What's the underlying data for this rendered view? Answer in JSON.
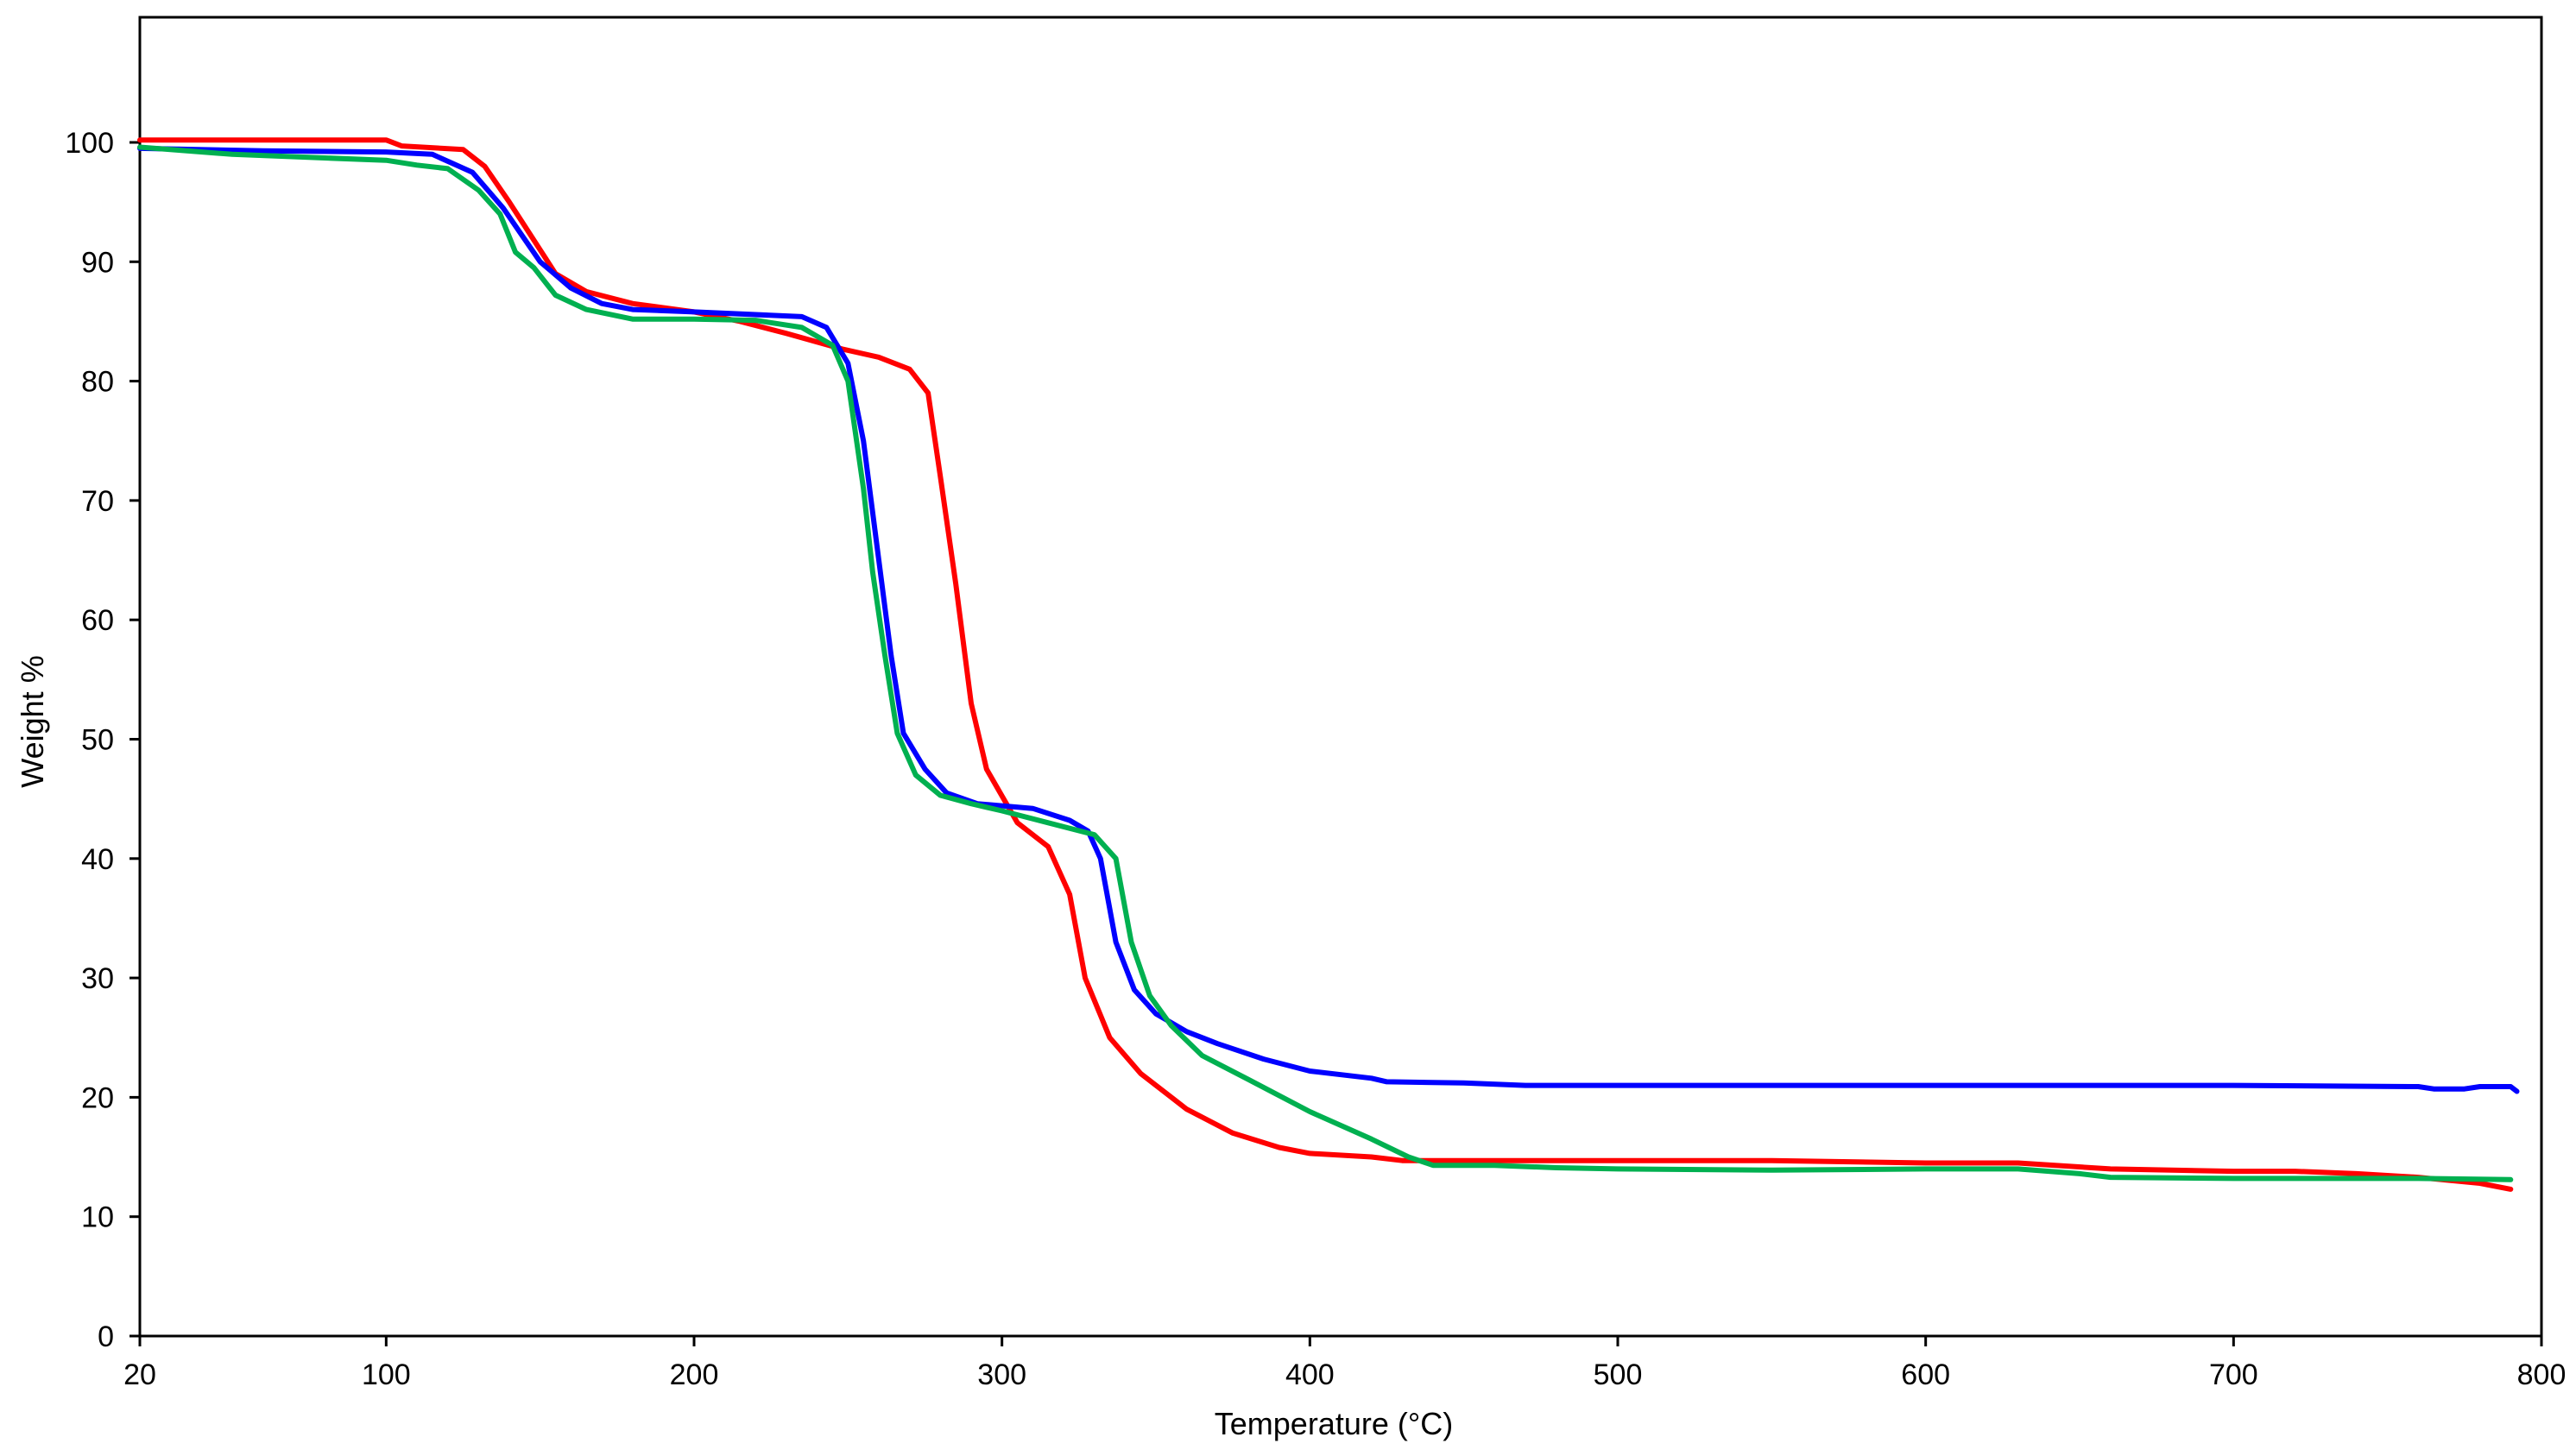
{
  "chart_data": {
    "type": "line",
    "title": "",
    "xlabel": "Temperature (°C)",
    "ylabel": "Weight %",
    "xlim": [
      20,
      800
    ],
    "ylim": [
      0,
      110
    ],
    "xticks": [
      20,
      100,
      200,
      300,
      400,
      500,
      600,
      700,
      800
    ],
    "yticks": [
      0,
      10,
      20,
      30,
      40,
      50,
      60,
      70,
      80,
      90,
      100
    ],
    "grid": false,
    "legend": "none",
    "series": [
      {
        "color": "#ff0000",
        "points": [
          [
            20,
            100.2
          ],
          [
            100,
            100.2
          ],
          [
            105,
            99.7
          ],
          [
            125,
            99.4
          ],
          [
            132,
            98
          ],
          [
            140,
            95
          ],
          [
            150,
            91
          ],
          [
            155,
            89
          ],
          [
            165,
            87.5
          ],
          [
            180,
            86.5
          ],
          [
            200,
            85.8
          ],
          [
            215,
            85
          ],
          [
            230,
            84
          ],
          [
            248,
            82.7
          ],
          [
            260,
            82
          ],
          [
            270,
            81
          ],
          [
            276,
            79
          ],
          [
            280,
            72
          ],
          [
            285,
            63
          ],
          [
            290,
            53
          ],
          [
            295,
            47.5
          ],
          [
            305,
            43
          ],
          [
            315,
            41
          ],
          [
            322,
            37
          ],
          [
            327,
            30
          ],
          [
            335,
            25
          ],
          [
            345,
            22
          ],
          [
            360,
            19
          ],
          [
            375,
            17
          ],
          [
            390,
            15.8
          ],
          [
            400,
            15.3
          ],
          [
            420,
            15
          ],
          [
            430,
            14.7
          ],
          [
            450,
            14.7
          ],
          [
            500,
            14.7
          ],
          [
            550,
            14.7
          ],
          [
            600,
            14.5
          ],
          [
            630,
            14.5
          ],
          [
            660,
            14
          ],
          [
            700,
            13.8
          ],
          [
            720,
            13.8
          ],
          [
            740,
            13.6
          ],
          [
            760,
            13.3
          ],
          [
            780,
            12.8
          ],
          [
            790,
            12.3
          ]
        ]
      },
      {
        "color": "#0000ff",
        "points": [
          [
            20,
            99.5
          ],
          [
            60,
            99.3
          ],
          [
            100,
            99.2
          ],
          [
            115,
            99
          ],
          [
            128,
            97.5
          ],
          [
            138,
            94.5
          ],
          [
            150,
            90
          ],
          [
            160,
            87.8
          ],
          [
            170,
            86.5
          ],
          [
            180,
            86
          ],
          [
            200,
            85.8
          ],
          [
            235,
            85.4
          ],
          [
            243,
            84.5
          ],
          [
            250,
            81.5
          ],
          [
            255,
            75
          ],
          [
            260,
            65
          ],
          [
            264,
            57
          ],
          [
            268,
            50.5
          ],
          [
            275,
            47.5
          ],
          [
            282,
            45.5
          ],
          [
            292,
            44.6
          ],
          [
            310,
            44.2
          ],
          [
            322,
            43.2
          ],
          [
            328,
            42.3
          ],
          [
            332,
            40
          ],
          [
            337,
            33
          ],
          [
            343,
            29
          ],
          [
            350,
            27
          ],
          [
            360,
            25.5
          ],
          [
            370,
            24.5
          ],
          [
            385,
            23.2
          ],
          [
            400,
            22.2
          ],
          [
            420,
            21.6
          ],
          [
            425,
            21.3
          ],
          [
            450,
            21.2
          ],
          [
            470,
            21
          ],
          [
            500,
            21
          ],
          [
            600,
            21
          ],
          [
            700,
            21
          ],
          [
            760,
            20.9
          ],
          [
            765,
            20.7
          ],
          [
            775,
            20.7
          ],
          [
            780,
            20.9
          ],
          [
            790,
            20.9
          ],
          [
            792,
            20.5
          ]
        ]
      },
      {
        "color": "#00b050",
        "points": [
          [
            20,
            99.6
          ],
          [
            50,
            99
          ],
          [
            80,
            98.7
          ],
          [
            100,
            98.5
          ],
          [
            110,
            98.1
          ],
          [
            120,
            97.8
          ],
          [
            130,
            96
          ],
          [
            137,
            94
          ],
          [
            142,
            90.8
          ],
          [
            148,
            89.5
          ],
          [
            155,
            87.2
          ],
          [
            165,
            86
          ],
          [
            180,
            85.2
          ],
          [
            200,
            85.2
          ],
          [
            220,
            85.1
          ],
          [
            235,
            84.5
          ],
          [
            245,
            83
          ],
          [
            250,
            80
          ],
          [
            255,
            71
          ],
          [
            258,
            64
          ],
          [
            262,
            57
          ],
          [
            266,
            50.5
          ],
          [
            272,
            47
          ],
          [
            280,
            45.3
          ],
          [
            290,
            44.6
          ],
          [
            300,
            44
          ],
          [
            315,
            43
          ],
          [
            330,
            42
          ],
          [
            337,
            40
          ],
          [
            342,
            33
          ],
          [
            348,
            28.5
          ],
          [
            355,
            26
          ],
          [
            365,
            23.5
          ],
          [
            380,
            21.5
          ],
          [
            400,
            18.8
          ],
          [
            420,
            16.5
          ],
          [
            432,
            15
          ],
          [
            440,
            14.3
          ],
          [
            460,
            14.3
          ],
          [
            480,
            14.1
          ],
          [
            500,
            14
          ],
          [
            550,
            13.9
          ],
          [
            600,
            14
          ],
          [
            630,
            14
          ],
          [
            650,
            13.6
          ],
          [
            660,
            13.3
          ],
          [
            700,
            13.2
          ],
          [
            760,
            13.2
          ],
          [
            790,
            13.1
          ]
        ]
      }
    ]
  }
}
